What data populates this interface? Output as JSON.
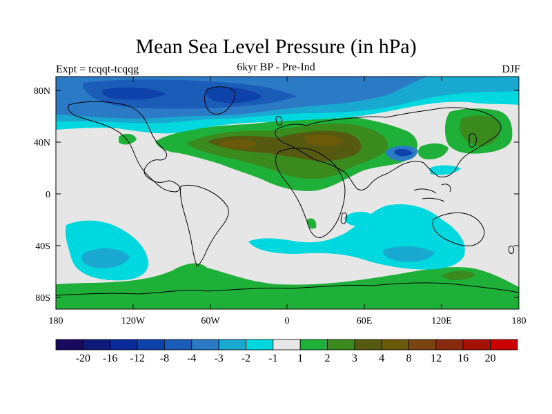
{
  "title": "Mean Sea Level Pressure (in hPa)",
  "subtitle": "6kyr BP - Pre-Ind",
  "left_label": "Expt = tcqqt-tcqqg",
  "right_label": "DJF",
  "x_ticks": [
    "180",
    "120W",
    "60W",
    "0",
    "60E",
    "120E",
    "180"
  ],
  "y_ticks": [
    "80N",
    "40N",
    "0",
    "40S",
    "80S"
  ],
  "colorbar": {
    "colors": [
      "#1a0a5e",
      "#0c1a7a",
      "#0a2a9a",
      "#0c42aa",
      "#1a5cb8",
      "#2a7ac6",
      "#18a8d0",
      "#00d8e0",
      "#e6e6e6",
      "#1fb03a",
      "#3a8a1e",
      "#555a10",
      "#6a5a0a",
      "#7a4410",
      "#8a2a10",
      "#a61208",
      "#cc0000"
    ],
    "labels": [
      "-20",
      "-16",
      "-12",
      "-8",
      "-4",
      "-3",
      "-2",
      "-1",
      "1",
      "2",
      "3",
      "4",
      "8",
      "12",
      "16",
      "20"
    ]
  },
  "palette": {
    "neutral": "#e6e6e6",
    "neg1": "#00d8e0",
    "neg2": "#18a8d0",
    "neg3": "#2a7ac6",
    "neg4": "#1a5cb8",
    "neg8": "#0c42aa",
    "pos1": "#1fb03a",
    "pos2": "#3a8a1e",
    "pos3": "#555a10",
    "pos4": "#6a5a0a",
    "pos5": "#7a4410"
  }
}
